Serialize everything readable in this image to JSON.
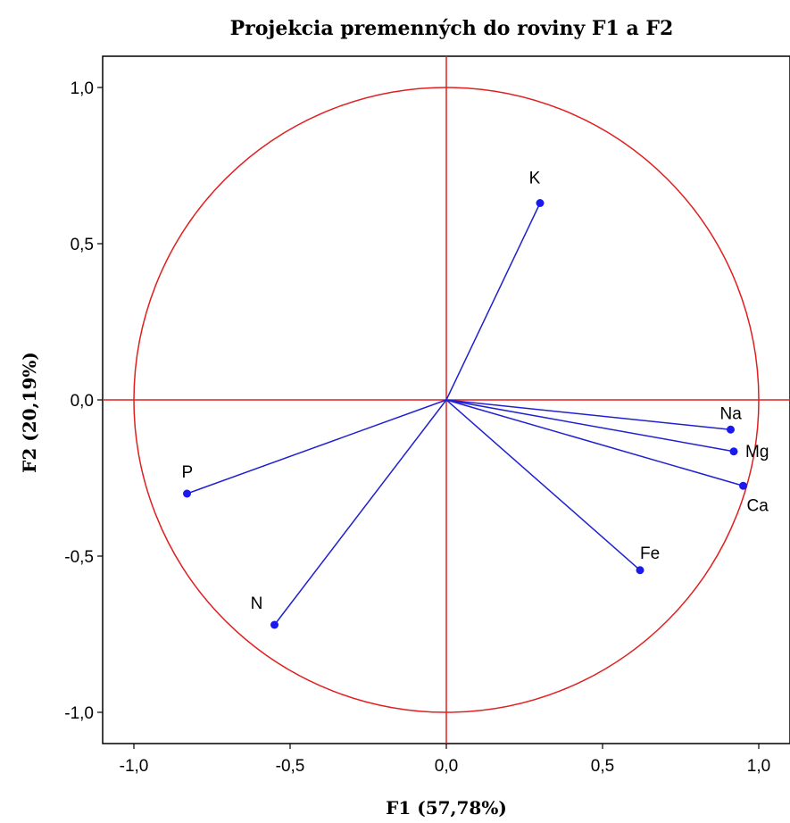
{
  "chart_data": {
    "type": "scatter",
    "subtype": "pca-correlation-circle",
    "title": "Projekcia premenných do roviny F1 a F2",
    "xlabel": "F1 (57,78%)",
    "ylabel": "F2 (20,19%)",
    "xlim": [
      -1.1,
      1.1
    ],
    "ylim": [
      -1.1,
      1.1
    ],
    "xticks": [
      "-1,0",
      "-0,5",
      "0,0",
      "0,5",
      "1,0"
    ],
    "yticks": [
      "1,0",
      "0,5",
      "0,0",
      "-0,5",
      "-1,0"
    ],
    "xtick_values": [
      -1.0,
      -0.5,
      0.0,
      0.5,
      1.0
    ],
    "ytick_values": [
      1.0,
      0.5,
      0.0,
      -0.5,
      -1.0
    ],
    "circle_radius": 1.0,
    "grid": false,
    "colors": {
      "circle": "#e02020",
      "axes_lines": "#e02020",
      "vectors": "#2020d0",
      "points": "#1a1af0"
    },
    "points": [
      {
        "label": "K",
        "x": 0.3,
        "y": 0.63
      },
      {
        "label": "Na",
        "x": 0.91,
        "y": -0.095
      },
      {
        "label": "Mg",
        "x": 0.92,
        "y": -0.165
      },
      {
        "label": "Ca",
        "x": 0.95,
        "y": -0.275
      },
      {
        "label": "Fe",
        "x": 0.62,
        "y": -0.545
      },
      {
        "label": "P",
        "x": -0.83,
        "y": -0.3
      },
      {
        "label": "N",
        "x": -0.55,
        "y": -0.72
      }
    ]
  }
}
